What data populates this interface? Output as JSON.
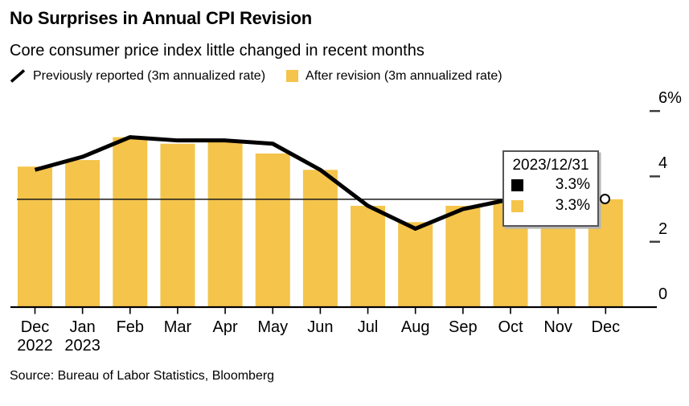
{
  "header": {
    "title": "No Surprises in Annual CPI Revision",
    "subtitle": "Core consumer price index little changed in recent months"
  },
  "legend": {
    "items": [
      {
        "icon": "line-slash-icon",
        "label": "Previously reported (3m annualized rate)",
        "color": "#000000"
      },
      {
        "icon": "bar-swatch-icon",
        "label": "After revision (3m annualized rate)",
        "color": "#F4C44B"
      }
    ]
  },
  "chart_data": {
    "type": "bar+line",
    "title": "No Surprises in Annual CPI Revision",
    "subtitle": "Core consumer price index little changed in recent months",
    "categories": [
      [
        "Dec",
        "2022"
      ],
      [
        "Jan",
        "2023"
      ],
      [
        "Feb"
      ],
      [
        "Mar"
      ],
      [
        "Apr"
      ],
      [
        "May"
      ],
      [
        "Jun"
      ],
      [
        "Jul"
      ],
      [
        "Aug"
      ],
      [
        "Sep"
      ],
      [
        "Oct"
      ],
      [
        "Nov"
      ],
      [
        "Dec"
      ]
    ],
    "series": [
      {
        "name": "Previously reported (3m annualized rate)",
        "type": "line",
        "color": "#000000",
        "values": [
          4.2,
          4.6,
          5.2,
          5.1,
          5.1,
          5.0,
          4.2,
          3.1,
          2.4,
          3.0,
          3.3,
          3.4,
          3.3
        ]
      },
      {
        "name": "After revision (3m annualized rate)",
        "type": "bar",
        "color": "#F4C44B",
        "values": [
          4.3,
          4.5,
          5.2,
          5.0,
          5.1,
          4.7,
          4.2,
          3.1,
          2.6,
          3.1,
          3.3,
          3.4,
          3.3
        ]
      }
    ],
    "ylim": [
      0,
      6
    ],
    "y_ticks": [
      {
        "value": 6,
        "label": "6%"
      },
      {
        "value": 4,
        "label": "4"
      },
      {
        "value": 2,
        "label": "2"
      },
      {
        "value": 0,
        "label": "0"
      }
    ],
    "y_axis_side": "right",
    "grid": false,
    "legend_position": "top",
    "reference_line_value": 3.3,
    "end_marker": {
      "x_index": 12,
      "value": 3.3
    }
  },
  "tooltip": {
    "date": "2023/12/31",
    "rows": [
      {
        "swatch_color": "#000000",
        "value": "3.3%"
      },
      {
        "swatch_color": "#F4C44B",
        "value": "3.3%"
      }
    ]
  },
  "source": "Source: Bureau of Labor Statistics, Bloomberg"
}
